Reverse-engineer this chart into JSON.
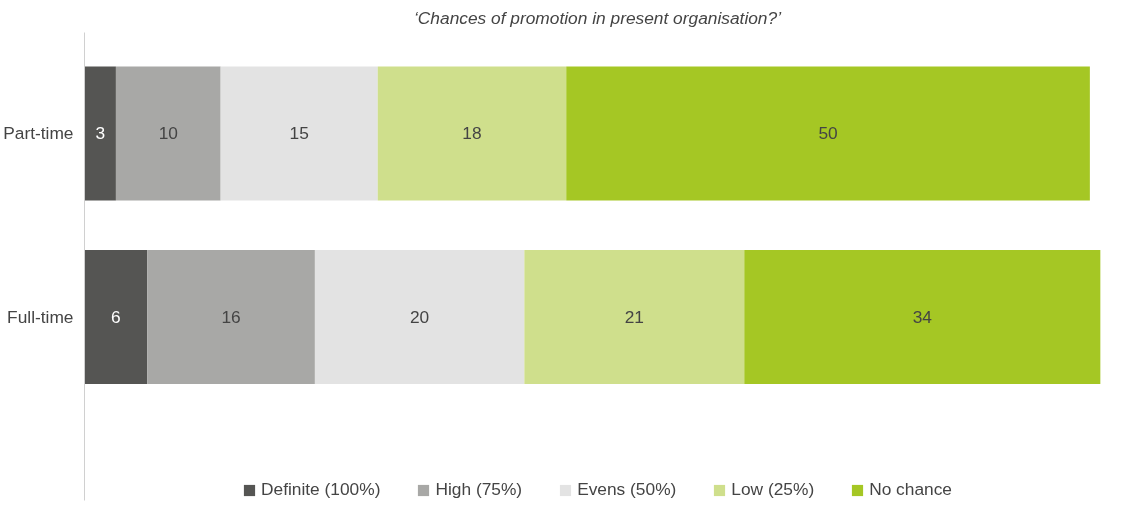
{
  "chart_data": {
    "type": "bar",
    "orientation": "horizontal",
    "stacked": true,
    "title": "‘Chances of promotion in present organisation?’",
    "categories": [
      "Part-time",
      "Full-time"
    ],
    "series": [
      {
        "name": "Definite (100%)",
        "color": "#555553",
        "values": [
          3,
          6
        ]
      },
      {
        "name": "High (75%)",
        "color": "#a8a8a6",
        "values": [
          10,
          16
        ]
      },
      {
        "name": "Evens (50%)",
        "color": "#e3e3e3",
        "values": [
          15,
          20
        ]
      },
      {
        "name": "Low (25%)",
        "color": "#cfdf8c",
        "values": [
          18,
          21
        ]
      },
      {
        "name": "No chance",
        "color": "#a5c724",
        "values": [
          50,
          34
        ]
      }
    ],
    "data_labels": true,
    "legend": "bottom",
    "tick_labels": "y"
  }
}
